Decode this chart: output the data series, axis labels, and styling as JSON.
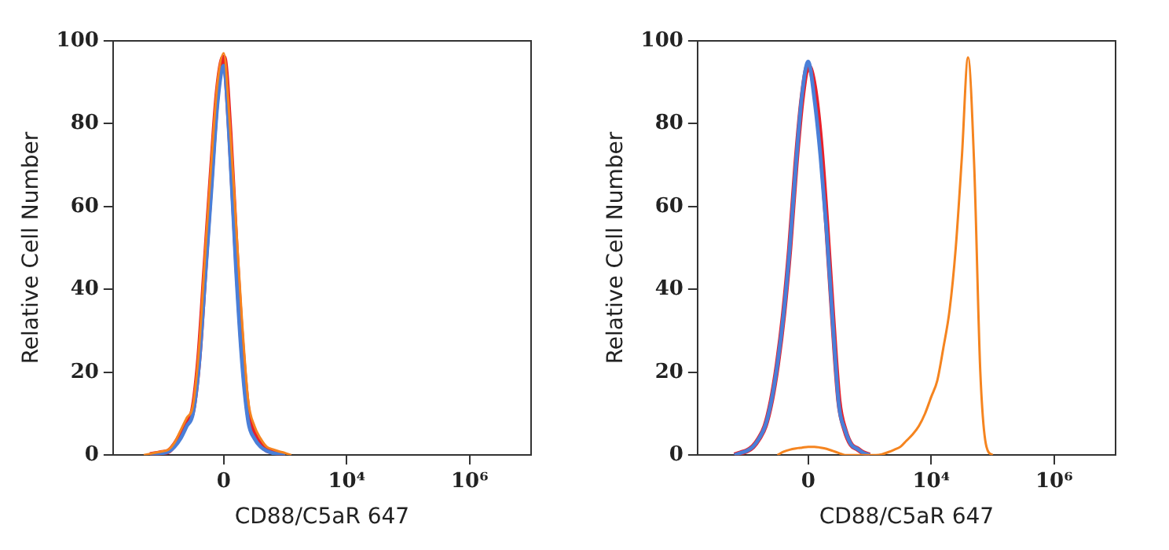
{
  "chart_data": [
    {
      "type": "line",
      "xlabel": "CD88/C5aR 647",
      "ylabel": "Relative Cell Number",
      "ylim": [
        0,
        100
      ],
      "yticks": [
        0,
        20,
        40,
        60,
        80,
        100
      ],
      "grid": false,
      "legend": false,
      "marker": "none",
      "line_style": "solid",
      "categories": [
        null,
        null,
        null,
        null,
        null,
        null,
        null,
        null,
        null,
        null,
        null,
        null,
        null,
        null,
        null,
        null,
        null,
        null,
        "0",
        null,
        null,
        null,
        null,
        null,
        null,
        null,
        null,
        null,
        null,
        null,
        null,
        null,
        null,
        null,
        null,
        null,
        null,
        null,
        "10⁴",
        null,
        null,
        null,
        null,
        null,
        null,
        null,
        null,
        null,
        null,
        null,
        null,
        null,
        null,
        null,
        null,
        null,
        null,
        null,
        "10⁶",
        null,
        null,
        null,
        null,
        null,
        null,
        null,
        null,
        null,
        null
      ],
      "series": [
        {
          "color": "#e8202a",
          "values": [
            null,
            null,
            null,
            null,
            null,
            null,
            0.1,
            0.3,
            0.6,
            0.9,
            2.5,
            5,
            8,
            11,
            24,
            46,
            68,
            88,
            96,
            78,
            50,
            26,
            10,
            5,
            2.5,
            1.2,
            0.8,
            0.4,
            0,
            null,
            null,
            null,
            null,
            null,
            null,
            null,
            null,
            null,
            null,
            null,
            null,
            null,
            null,
            null,
            null,
            null,
            null,
            null,
            null,
            null,
            null,
            null,
            null,
            null,
            null,
            null,
            null,
            null,
            null,
            null,
            null,
            null,
            null,
            null,
            null,
            null,
            null,
            null,
            null
          ]
        },
        {
          "color": "#4a7fd8",
          "values": [
            null,
            null,
            null,
            null,
            null,
            null,
            0.1,
            0.3,
            0.5,
            0.8,
            2,
            4,
            7,
            10,
            22,
            43,
            64,
            85,
            94,
            74,
            45,
            22,
            8,
            4,
            2,
            1,
            0.5,
            0.2,
            0,
            null,
            null,
            null,
            null,
            null,
            null,
            null,
            null,
            null,
            null,
            null,
            null,
            null,
            null,
            null,
            null,
            null,
            null,
            null,
            null,
            null,
            null,
            null,
            null,
            null,
            null,
            null,
            null,
            null,
            null,
            null,
            null,
            null,
            null,
            null,
            null,
            null,
            null,
            null,
            null
          ]
        },
        {
          "color": "#f5841f",
          "values": [
            null,
            null,
            null,
            null,
            null,
            0,
            0.3,
            0.6,
            0.9,
            1.3,
            3,
            6,
            9,
            12,
            26,
            49,
            71,
            90,
            97,
            80,
            56,
            32,
            13,
            7,
            4,
            2,
            1.4,
            0.9,
            0.5,
            0,
            null,
            null,
            null,
            null,
            null,
            null,
            null,
            null,
            null,
            null,
            null,
            null,
            null,
            null,
            null,
            null,
            null,
            null,
            null,
            null,
            null,
            null,
            null,
            null,
            null,
            null,
            null,
            null,
            null,
            null,
            null,
            null,
            null,
            null,
            null,
            null,
            null,
            null,
            null
          ]
        }
      ]
    },
    {
      "type": "line",
      "xlabel": "CD88/C5aR 647",
      "ylabel": "Relative Cell Number",
      "ylim": [
        0,
        100
      ],
      "yticks": [
        0,
        20,
        40,
        60,
        80,
        100
      ],
      "grid": false,
      "legend": false,
      "marker": "none",
      "line_style": "solid",
      "categories": [
        null,
        null,
        null,
        null,
        null,
        null,
        null,
        null,
        null,
        null,
        null,
        null,
        null,
        null,
        null,
        null,
        null,
        null,
        "0",
        null,
        null,
        null,
        null,
        null,
        null,
        null,
        null,
        null,
        null,
        null,
        null,
        null,
        null,
        null,
        null,
        null,
        null,
        null,
        "10⁴",
        null,
        null,
        null,
        null,
        null,
        null,
        null,
        null,
        null,
        null,
        null,
        null,
        null,
        null,
        null,
        null,
        null,
        null,
        null,
        "10⁶",
        null,
        null,
        null,
        null,
        null,
        null,
        null,
        null,
        null,
        null
      ],
      "series": [
        {
          "color": "#e8202a",
          "values": [
            null,
            null,
            null,
            null,
            null,
            null,
            0,
            0.5,
            1,
            2,
            4,
            7,
            13,
            22,
            34,
            50,
            70,
            86,
            94,
            89,
            76,
            56,
            33,
            13,
            6,
            2.5,
            1.5,
            0.5,
            0,
            null,
            null,
            null,
            null,
            null,
            null,
            null,
            null,
            null,
            null,
            null,
            null,
            null,
            null,
            null,
            null,
            null,
            null,
            null,
            null,
            null,
            null,
            null,
            null,
            null,
            null,
            null,
            null,
            null,
            null,
            null,
            null,
            null,
            null,
            null,
            null,
            null,
            null,
            null,
            null
          ]
        },
        {
          "color": "#4a7fd8",
          "values": [
            null,
            null,
            null,
            null,
            null,
            null,
            0,
            0.5,
            1,
            2,
            4,
            7,
            13,
            22,
            34,
            50,
            70,
            87,
            95,
            86,
            72,
            54,
            32,
            12,
            6,
            2.5,
            1.5,
            0.5,
            0,
            null,
            null,
            null,
            null,
            null,
            null,
            null,
            null,
            null,
            null,
            null,
            null,
            null,
            null,
            null,
            null,
            null,
            null,
            null,
            null,
            null,
            null,
            null,
            null,
            null,
            null,
            null,
            null,
            null,
            null,
            null,
            null,
            null,
            null,
            null,
            null,
            null,
            null,
            null,
            null
          ]
        },
        {
          "color": "#f5841f",
          "values": [
            null,
            null,
            null,
            null,
            null,
            null,
            null,
            null,
            null,
            null,
            null,
            null,
            null,
            0,
            0.8,
            1.3,
            1.6,
            1.8,
            2,
            2,
            1.8,
            1.5,
            1,
            0.5,
            0,
            0,
            0,
            0,
            0,
            0,
            0.2,
            0.7,
            1.3,
            2,
            3.5,
            5,
            7,
            10,
            14,
            18,
            26,
            35,
            50,
            72,
            96,
            70,
            20,
            2,
            0,
            null,
            null,
            null,
            null,
            null,
            null,
            null,
            null,
            null,
            null,
            null,
            null,
            null,
            null,
            null,
            null,
            null,
            null,
            null,
            null
          ]
        }
      ]
    }
  ]
}
